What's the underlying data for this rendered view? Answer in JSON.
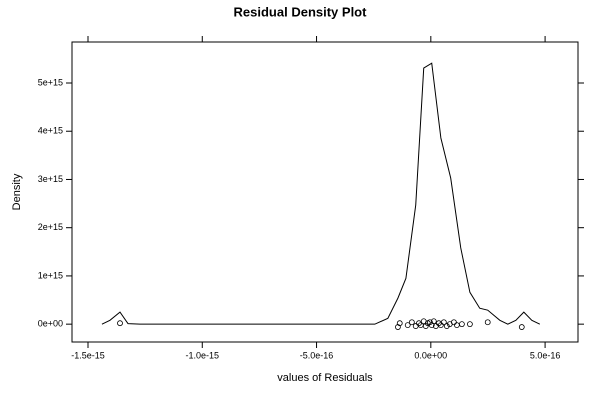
{
  "chart_data": {
    "type": "line",
    "title": "Residual Density Plot",
    "x_label": "values of Residuals",
    "y_label": "Density",
    "color": "#000000",
    "x": [
      -1.439e-15,
      -1.404e-15,
      -1.36e-15,
      -1.325e-15,
      -1.273e-15,
      -2.45e-16,
      -1.88e-16,
      -1.44e-16,
      -1.09e-16,
      -6.6e-17,
      -3.1e-17,
      4e-18,
      4.4e-17,
      8.7e-17,
      1.31e-16,
      1.71e-16,
      2.14e-16,
      2.49e-16,
      3.02e-16,
      3.37e-16,
      3.72e-16,
      4.07e-16,
      4.42e-16,
      4.77e-16
    ],
    "values": [
      0,
      80000000000000.0,
      250000000000000.0,
      12000000000000.0,
      0,
      0,
      120000000000000.0,
      540000000000000.0,
      950000000000000.0,
      2470000000000000.0,
      5310000000000000.0,
      5410000000000000.0,
      3860000000000000.0,
      3030000000000000.0,
      1580000000000000.0,
      660000000000000.0,
      330000000000000.0,
      290000000000000.0,
      80000000000000.0,
      0,
      80000000000000.0,
      250000000000000.0,
      80000000000000.0,
      0
    ],
    "points": {
      "x": [
        -1.36e-15,
        -1.44e-16,
        -1.36e-16,
        -1.01e-16,
        -8.3e-17,
        -6.6e-17,
        -5.2e-17,
        -4.4e-17,
        -3.1e-17,
        -2.2e-17,
        -1.3e-17,
        -4e-18,
        4e-18,
        1.3e-17,
        2.2e-17,
        3.5e-17,
        4.4e-17,
        5.7e-17,
        7e-17,
        8.3e-17,
        1.01e-16,
        1.14e-16,
        1.36e-16,
        1.71e-16,
        2.49e-16,
        3.98e-16
      ],
      "y": [
        20000000000000.0,
        -60000000000000.0,
        20000000000000.0,
        -20000000000000.0,
        40000000000000.0,
        -40000000000000.0,
        20000000000000.0,
        -20000000000000.0,
        60000000000000.0,
        -40000000000000.0,
        20000000000000.0,
        40000000000000.0,
        -20000000000000.0,
        60000000000000.0,
        -40000000000000.0,
        20000000000000.0,
        -20000000000000.0,
        40000000000000.0,
        -40000000000000.0,
        0,
        40000000000000.0,
        -20000000000000.0,
        0,
        0,
        40000000000000.0,
        -60000000000000.0
      ]
    },
    "xlim": [
      -1.57e-15,
      6.44e-16
    ],
    "ylim": [
      -370000000000000.0,
      5850000000000000.0
    ],
    "xticks": [
      {
        "value": -1.5e-15,
        "label": "-1.5e-15"
      },
      {
        "value": -1e-15,
        "label": "-1.0e-15"
      },
      {
        "value": -5e-16,
        "label": "-5.0e-16"
      },
      {
        "value": 0,
        "label": "0.0e+00"
      },
      {
        "value": 5e-16,
        "label": "5.0e-16"
      }
    ],
    "yticks": [
      {
        "value": 0,
        "label": "0e+00"
      },
      {
        "value": 1000000000000000.0,
        "label": "1e+15"
      },
      {
        "value": 2000000000000000.0,
        "label": "2e+15"
      },
      {
        "value": 3000000000000000.0,
        "label": "3e+15"
      },
      {
        "value": 4000000000000000.0,
        "label": "4e+15"
      },
      {
        "value": 5000000000000000.0,
        "label": "5e+15"
      }
    ]
  }
}
